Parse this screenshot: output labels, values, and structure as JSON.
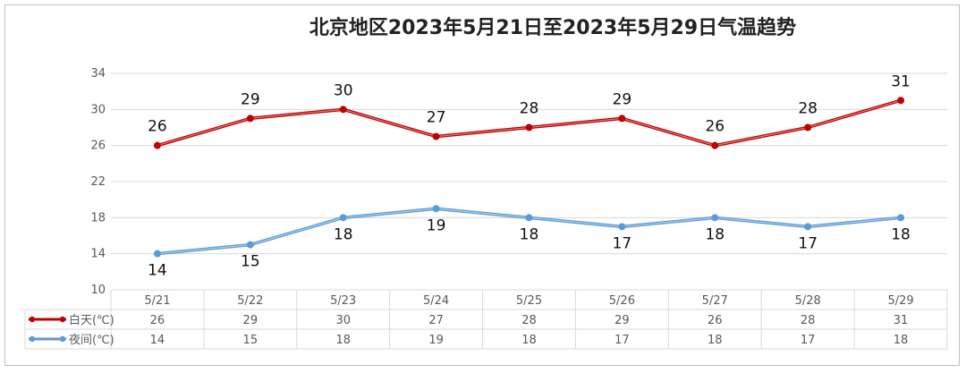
{
  "chart_data": {
    "type": "line",
    "title": "北京地区2023年5月21日至2023年5月29日气温趋势",
    "categories": [
      "5/21",
      "5/22",
      "5/23",
      "5/24",
      "5/25",
      "5/26",
      "5/27",
      "5/28",
      "5/29"
    ],
    "series": [
      {
        "name": "白天(℃)",
        "color": "#c00000",
        "values": [
          26,
          29,
          30,
          27,
          28,
          29,
          26,
          28,
          31
        ],
        "label_position": "above"
      },
      {
        "name": "夜间(℃)",
        "color": "#5b9bd5",
        "values": [
          14,
          15,
          18,
          19,
          18,
          17,
          18,
          17,
          18
        ],
        "label_position": "below"
      }
    ],
    "ylim": [
      10,
      34
    ],
    "yticks": [
      10,
      14,
      18,
      22,
      26,
      30,
      34
    ],
    "grid": true,
    "legend": "data-table-below"
  }
}
